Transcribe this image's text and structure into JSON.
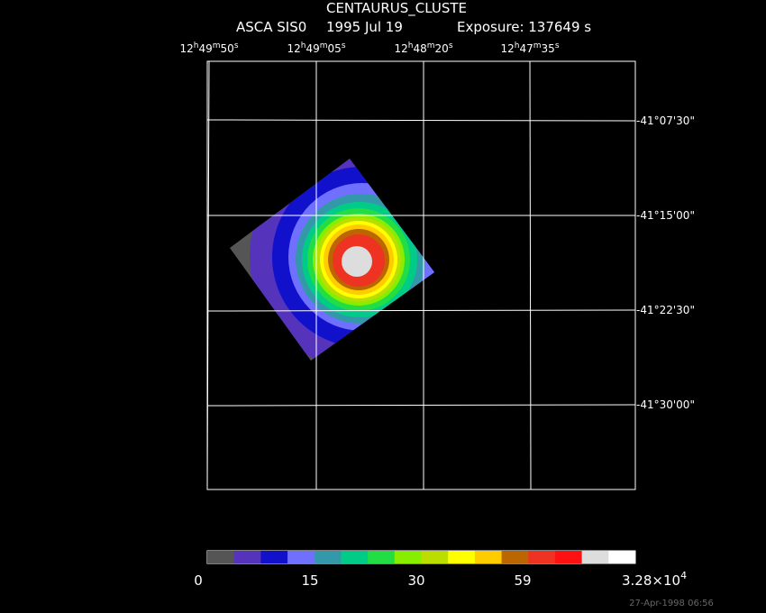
{
  "header": {
    "title": "CENTAURUS_CLUSTE",
    "instrument": "ASCA SIS0",
    "date": "1995 Jul 19",
    "exposure": "Exposure: 137649 s"
  },
  "ra_labels": [
    [
      "12",
      "h",
      "49",
      "m",
      "50",
      "s"
    ],
    [
      "12",
      "h",
      "49",
      "m",
      "05",
      "s"
    ],
    [
      "12",
      "h",
      "48",
      "m",
      "20",
      "s"
    ],
    [
      "12",
      "h",
      "47",
      "m",
      "35",
      "s"
    ]
  ],
  "dec_labels": [
    "-41°07'30\"",
    "-41°15'00\"",
    "-41°22'30\"",
    "-41°30'00\""
  ],
  "colorbar": {
    "colors": [
      "#555555",
      "#5533bb",
      "#1111cc",
      "#7070ff",
      "#3399aa",
      "#00cc88",
      "#22dd44",
      "#88ee00",
      "#bbdd00",
      "#ffff00",
      "#ffcc00",
      "#bb6600",
      "#ee3322",
      "#ff1111",
      "#dddddd",
      "#ffffff"
    ],
    "labels": [
      "0",
      "15",
      "30",
      "59"
    ],
    "max_label": [
      "3.28×10",
      "4"
    ]
  },
  "timestamp": "27-Apr-1998 06:56"
}
